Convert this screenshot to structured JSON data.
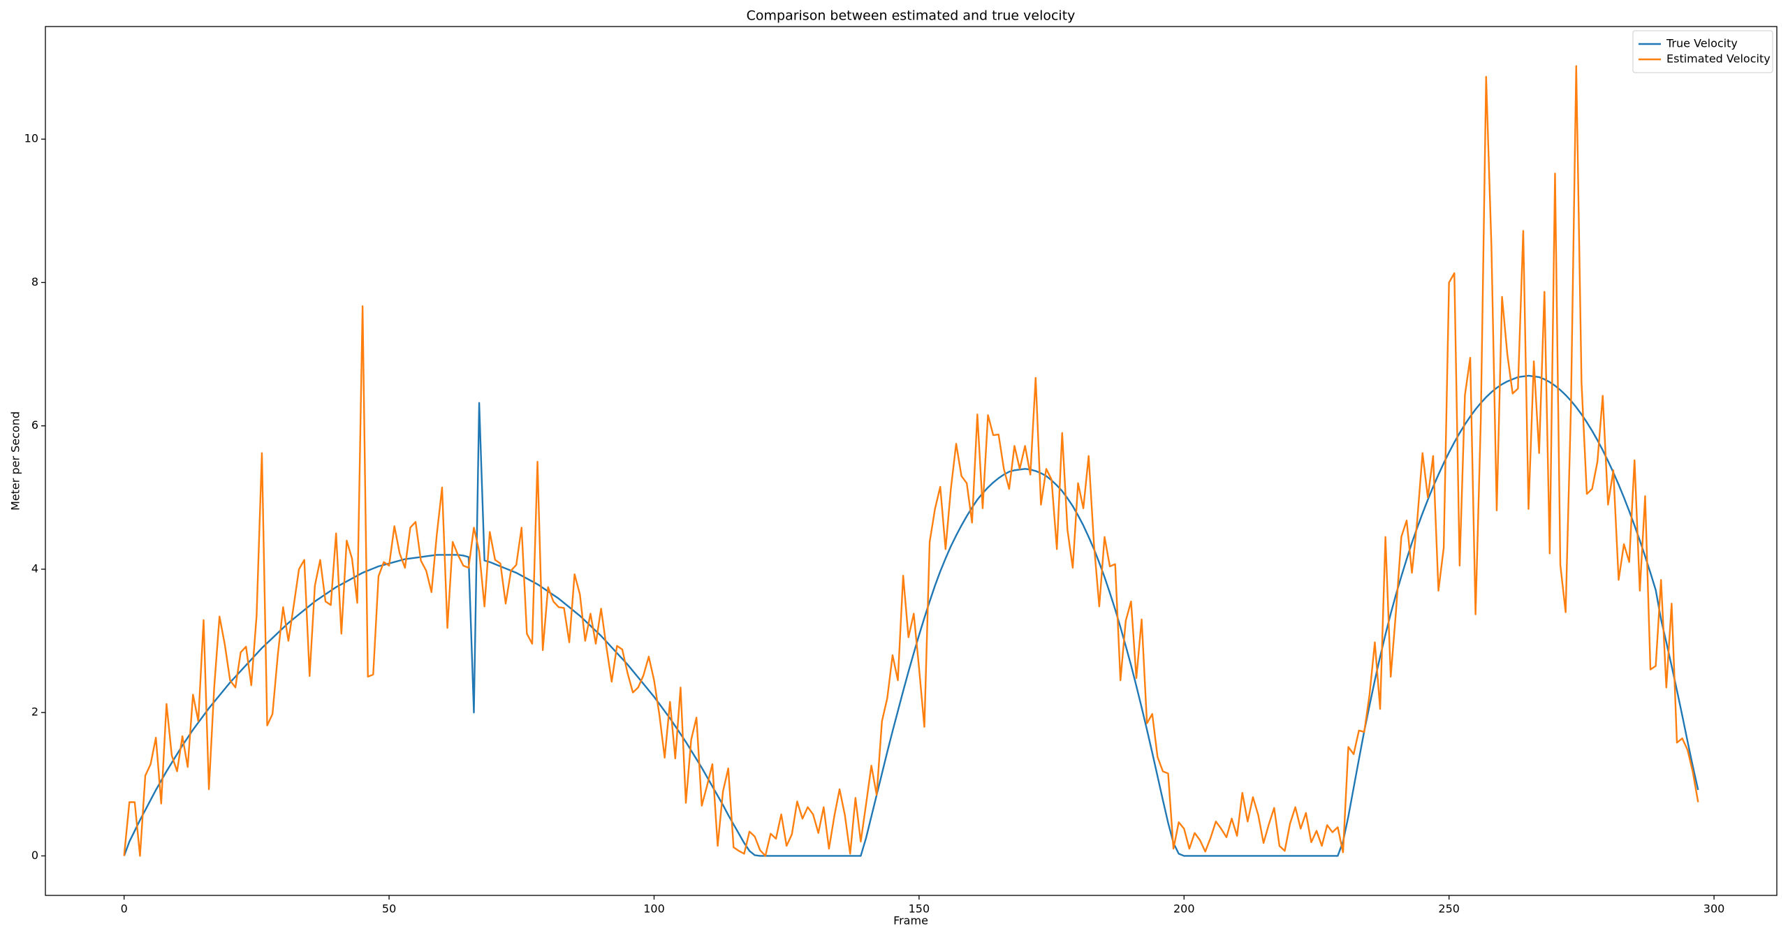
{
  "chart_data": {
    "type": "line",
    "title": "Comparison between estimated and true velocity",
    "xlabel": "Frame",
    "ylabel": "Meter per Second",
    "x": [
      0,
      1,
      2,
      3,
      4,
      5,
      6,
      7,
      8,
      9,
      10,
      11,
      12,
      13,
      14,
      15,
      16,
      17,
      18,
      19,
      20,
      21,
      22,
      23,
      24,
      25,
      26,
      27,
      28,
      29,
      30,
      31,
      32,
      33,
      34,
      35,
      36,
      37,
      38,
      39,
      40,
      41,
      42,
      43,
      44,
      45,
      46,
      47,
      48,
      49,
      50,
      51,
      52,
      53,
      54,
      55,
      56,
      57,
      58,
      59,
      60,
      61,
      62,
      63,
      64,
      65,
      66,
      67,
      68,
      69,
      70,
      71,
      72,
      73,
      74,
      75,
      76,
      77,
      78,
      79,
      80,
      81,
      82,
      83,
      84,
      85,
      86,
      87,
      88,
      89,
      90,
      91,
      92,
      93,
      94,
      95,
      96,
      97,
      98,
      99,
      100,
      101,
      102,
      103,
      104,
      105,
      106,
      107,
      108,
      109,
      110,
      111,
      112,
      113,
      114,
      115,
      116,
      117,
      118,
      119,
      120,
      121,
      122,
      123,
      124,
      125,
      126,
      127,
      128,
      129,
      130,
      131,
      132,
      133,
      134,
      135,
      136,
      137,
      138,
      139,
      140,
      141,
      142,
      143,
      144,
      145,
      146,
      147,
      148,
      149,
      150,
      151,
      152,
      153,
      154,
      155,
      156,
      157,
      158,
      159,
      160,
      161,
      162,
      163,
      164,
      165,
      166,
      167,
      168,
      169,
      170,
      171,
      172,
      173,
      174,
      175,
      176,
      177,
      178,
      179,
      180,
      181,
      182,
      183,
      184,
      185,
      186,
      187,
      188,
      189,
      190,
      191,
      192,
      193,
      194,
      195,
      196,
      197,
      198,
      199,
      200,
      201,
      202,
      203,
      204,
      205,
      206,
      207,
      208,
      209,
      210,
      211,
      212,
      213,
      214,
      215,
      216,
      217,
      218,
      219,
      220,
      221,
      222,
      223,
      224,
      225,
      226,
      227,
      228,
      229,
      230,
      231,
      232,
      233,
      234,
      235,
      236,
      237,
      238,
      239,
      240,
      241,
      242,
      243,
      244,
      245,
      246,
      247,
      248,
      249,
      250,
      251,
      252,
      253,
      254,
      255,
      256,
      257,
      258,
      259,
      260,
      261,
      262,
      263,
      264,
      265,
      266,
      267,
      268,
      269,
      270,
      271,
      272,
      273,
      274,
      275,
      276,
      277,
      278,
      279,
      280,
      281,
      282,
      283,
      284,
      285,
      286,
      287,
      288,
      289,
      290,
      291,
      292,
      293,
      294,
      295,
      296,
      297
    ],
    "series": [
      {
        "name": "True Velocity",
        "color": "#1f77b4",
        "values": [
          0,
          0.2,
          0.35,
          0.5,
          0.64,
          0.78,
          0.92,
          1.05,
          1.18,
          1.3,
          1.42,
          1.54,
          1.65,
          1.76,
          1.86,
          1.96,
          2.06,
          2.15,
          2.24,
          2.33,
          2.42,
          2.5,
          2.58,
          2.66,
          2.74,
          2.82,
          2.9,
          2.97,
          3.04,
          3.11,
          3.18,
          3.25,
          3.31,
          3.37,
          3.43,
          3.49,
          3.55,
          3.6,
          3.65,
          3.7,
          3.75,
          3.79,
          3.83,
          3.87,
          3.91,
          3.95,
          3.98,
          4.01,
          4.04,
          4.06,
          4.08,
          4.1,
          4.12,
          4.14,
          4.15,
          4.16,
          4.17,
          4.18,
          4.19,
          4.2,
          4.2,
          4.2,
          4.2,
          4.2,
          4.19,
          4.17,
          2.0,
          6.32,
          4.12,
          4.1,
          4.07,
          4.04,
          4.01,
          3.98,
          3.95,
          3.91,
          3.87,
          3.83,
          3.79,
          3.74,
          3.69,
          3.64,
          3.59,
          3.53,
          3.47,
          3.41,
          3.35,
          3.28,
          3.21,
          3.14,
          3.07,
          2.99,
          2.91,
          2.83,
          2.75,
          2.67,
          2.58,
          2.49,
          2.4,
          2.31,
          2.22,
          2.12,
          2.02,
          1.92,
          1.81,
          1.7,
          1.59,
          1.47,
          1.35,
          1.23,
          1.1,
          0.97,
          0.84,
          0.71,
          0.57,
          0.44,
          0.31,
          0.18,
          0.07,
          0.01,
          0,
          0,
          0,
          0,
          0,
          0,
          0,
          0,
          0,
          0,
          0,
          0,
          0,
          0,
          0,
          0,
          0,
          0,
          0,
          0,
          0.25,
          0.55,
          0.85,
          1.15,
          1.45,
          1.74,
          2.02,
          2.3,
          2.57,
          2.83,
          3.08,
          3.32,
          3.55,
          3.77,
          3.97,
          4.15,
          4.32,
          4.47,
          4.61,
          4.74,
          4.86,
          4.97,
          5.06,
          5.14,
          5.21,
          5.27,
          5.32,
          5.36,
          5.38,
          5.39,
          5.4,
          5.39,
          5.37,
          5.34,
          5.3,
          5.24,
          5.17,
          5.09,
          4.99,
          4.88,
          4.75,
          4.61,
          4.45,
          4.28,
          4.09,
          3.89,
          3.67,
          3.44,
          3.19,
          2.93,
          2.66,
          2.37,
          2.07,
          1.76,
          1.44,
          1.11,
          0.78,
          0.46,
          0.18,
          0.03,
          0,
          0,
          0,
          0,
          0,
          0,
          0,
          0,
          0,
          0,
          0,
          0,
          0,
          0,
          0,
          0,
          0,
          0,
          0,
          0,
          0,
          0,
          0,
          0,
          0,
          0,
          0,
          0,
          0,
          0,
          0.2,
          0.55,
          0.95,
          1.35,
          1.74,
          2.1,
          2.45,
          2.78,
          3.09,
          3.38,
          3.65,
          3.9,
          4.14,
          4.37,
          4.58,
          4.78,
          4.97,
          5.15,
          5.32,
          5.48,
          5.63,
          5.77,
          5.9,
          6.02,
          6.13,
          6.23,
          6.32,
          6.4,
          6.47,
          6.53,
          6.58,
          6.62,
          6.65,
          6.68,
          6.69,
          6.7,
          6.69,
          6.68,
          6.65,
          6.61,
          6.56,
          6.5,
          6.43,
          6.35,
          6.26,
          6.16,
          6.05,
          5.93,
          5.8,
          5.66,
          5.51,
          5.35,
          5.18,
          5.0,
          4.81,
          4.61,
          4.4,
          4.18,
          3.95,
          3.71,
          3.3,
          2.98,
          2.65,
          2.31,
          1.96,
          1.6,
          1.25,
          0.92
        ]
      },
      {
        "name": "Estimated Velocity",
        "color": "#ff7f0e",
        "values": [
          0,
          0.75,
          0.75,
          0,
          1.12,
          1.28,
          1.65,
          0.73,
          2.12,
          1.4,
          1.18,
          1.67,
          1.24,
          2.25,
          1.88,
          3.29,
          0.93,
          2.35,
          3.34,
          2.95,
          2.45,
          2.35,
          2.84,
          2.92,
          2.38,
          3.35,
          5.62,
          1.82,
          1.98,
          2.8,
          3.47,
          3.0,
          3.49,
          4.0,
          4.13,
          2.51,
          3.77,
          4.13,
          3.55,
          3.5,
          4.5,
          3.1,
          4.4,
          4.15,
          3.53,
          7.67,
          2.5,
          2.53,
          3.9,
          4.1,
          4.05,
          4.6,
          4.22,
          4.02,
          4.58,
          4.66,
          4.12,
          3.98,
          3.68,
          4.48,
          5.14,
          3.18,
          4.38,
          4.2,
          4.05,
          4.02,
          4.58,
          4.25,
          3.48,
          4.52,
          4.13,
          4.08,
          3.52,
          3.98,
          4.06,
          4.58,
          3.1,
          2.96,
          5.5,
          2.87,
          3.75,
          3.55,
          3.47,
          3.46,
          2.98,
          3.93,
          3.65,
          3.0,
          3.38,
          2.96,
          3.45,
          2.92,
          2.43,
          2.93,
          2.88,
          2.55,
          2.28,
          2.35,
          2.52,
          2.78,
          2.45,
          1.97,
          1.37,
          2.15,
          1.36,
          2.35,
          0.74,
          1.62,
          1.93,
          0.7,
          0.98,
          1.28,
          0.14,
          0.9,
          1.22,
          0.12,
          0.07,
          0.03,
          0.34,
          0.27,
          0.08,
          0.0,
          0.31,
          0.24,
          0.58,
          0.14,
          0.3,
          0.76,
          0.52,
          0.68,
          0.58,
          0.32,
          0.68,
          0.1,
          0.55,
          0.93,
          0.57,
          0.03,
          0.81,
          0.2,
          0.72,
          1.26,
          0.85,
          1.88,
          2.2,
          2.8,
          2.45,
          3.91,
          3.05,
          3.38,
          2.62,
          1.8,
          4.38,
          4.84,
          5.15,
          4.28,
          5.12,
          5.75,
          5.3,
          5.2,
          4.65,
          6.16,
          4.85,
          6.15,
          5.87,
          5.88,
          5.4,
          5.12,
          5.72,
          5.4,
          5.72,
          5.32,
          6.67,
          4.9,
          5.4,
          5.25,
          4.28,
          5.9,
          4.55,
          4.02,
          5.2,
          4.85,
          5.58,
          4.35,
          3.48,
          4.45,
          4.04,
          4.07,
          2.45,
          3.28,
          3.55,
          2.48,
          3.3,
          1.85,
          1.98,
          1.38,
          1.18,
          1.15,
          0.1,
          0.47,
          0.38,
          0.1,
          0.32,
          0.22,
          0.06,
          0.25,
          0.48,
          0.38,
          0.26,
          0.52,
          0.28,
          0.88,
          0.48,
          0.82,
          0.57,
          0.18,
          0.44,
          0.67,
          0.14,
          0.07,
          0.45,
          0.68,
          0.38,
          0.6,
          0.19,
          0.35,
          0.14,
          0.43,
          0.33,
          0.4,
          0.05,
          1.52,
          1.42,
          1.75,
          1.73,
          2.25,
          2.98,
          2.05,
          4.45,
          2.5,
          3.42,
          4.45,
          4.68,
          3.95,
          4.68,
          5.62,
          5.0,
          5.58,
          3.7,
          4.3,
          8.0,
          8.13,
          4.05,
          6.43,
          6.95,
          3.37,
          6.1,
          10.87,
          8.5,
          4.82,
          7.8,
          7.0,
          6.45,
          6.52,
          8.72,
          4.84,
          6.9,
          5.62,
          7.87,
          4.22,
          9.52,
          4.06,
          3.4,
          6.25,
          11.02,
          6.6,
          5.05,
          5.12,
          5.5,
          6.42,
          4.9,
          5.38,
          3.85,
          4.35,
          4.1,
          5.52,
          3.7,
          5.02,
          2.6,
          2.65,
          3.85,
          2.35,
          3.52,
          1.58,
          1.64,
          1.48,
          1.17,
          0.75
        ]
      }
    ],
    "xlim": [
      -14.85,
      311.85
    ],
    "xticks": [
      0,
      50,
      100,
      150,
      200,
      250,
      300
    ],
    "ylim": [
      -0.551,
      11.571
    ],
    "yticks": [
      0,
      2,
      4,
      6,
      8,
      10
    ],
    "grid": false,
    "legend": "upper right"
  }
}
